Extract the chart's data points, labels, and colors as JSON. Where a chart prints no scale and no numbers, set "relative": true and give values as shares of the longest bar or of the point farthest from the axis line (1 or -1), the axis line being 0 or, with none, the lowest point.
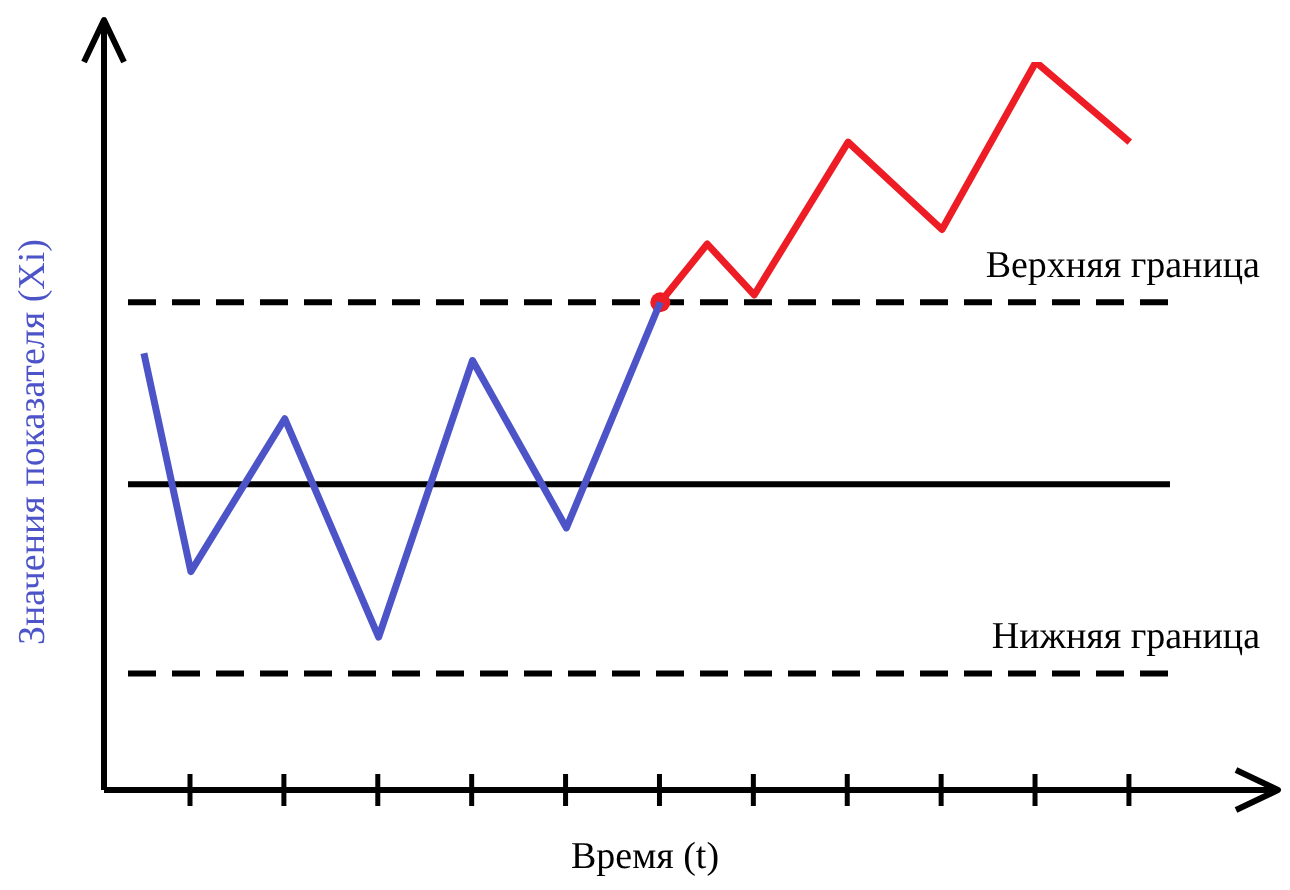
{
  "chart_data": {
    "type": "line",
    "relative": true,
    "xlabel": "Время (t)",
    "ylabel": "Значения показателя (Xi)",
    "categories": [
      null,
      null,
      null,
      null,
      null,
      null,
      null,
      null,
      null,
      null,
      null,
      null,
      null,
      null,
      null,
      null,
      null,
      null,
      null,
      null,
      null,
      null
    ],
    "marker": "none",
    "line_style": "solid",
    "series": [
      {
        "color": "#4c54c8",
        "values": [
          0.6,
          0.3,
          null,
          0.51,
          null,
          0.21,
          null,
          0.59,
          null,
          0.36,
          null,
          0.67,
          null,
          null,
          null,
          null,
          null,
          null,
          null,
          null,
          null,
          null
        ]
      },
      {
        "color": "#ee1c24",
        "values": [
          null,
          null,
          null,
          null,
          null,
          null,
          null,
          null,
          null,
          null,
          null,
          0.67,
          0.75,
          0.68,
          null,
          0.89,
          null,
          0.77,
          null,
          1,
          null,
          0.89
        ]
      }
    ],
    "ref_lines": [
      {
        "axis": "y",
        "value": 0.67,
        "label": "Верхняя граница",
        "line_style": "dashed",
        "color": "#000000"
      },
      {
        "axis": "y",
        "value": 0.42,
        "label": null,
        "line_style": "solid",
        "color": "#000000"
      },
      {
        "axis": "y",
        "value": 0.16,
        "label": "Нижняя граница",
        "line_style": "dashed",
        "color": "#000000"
      }
    ]
  }
}
